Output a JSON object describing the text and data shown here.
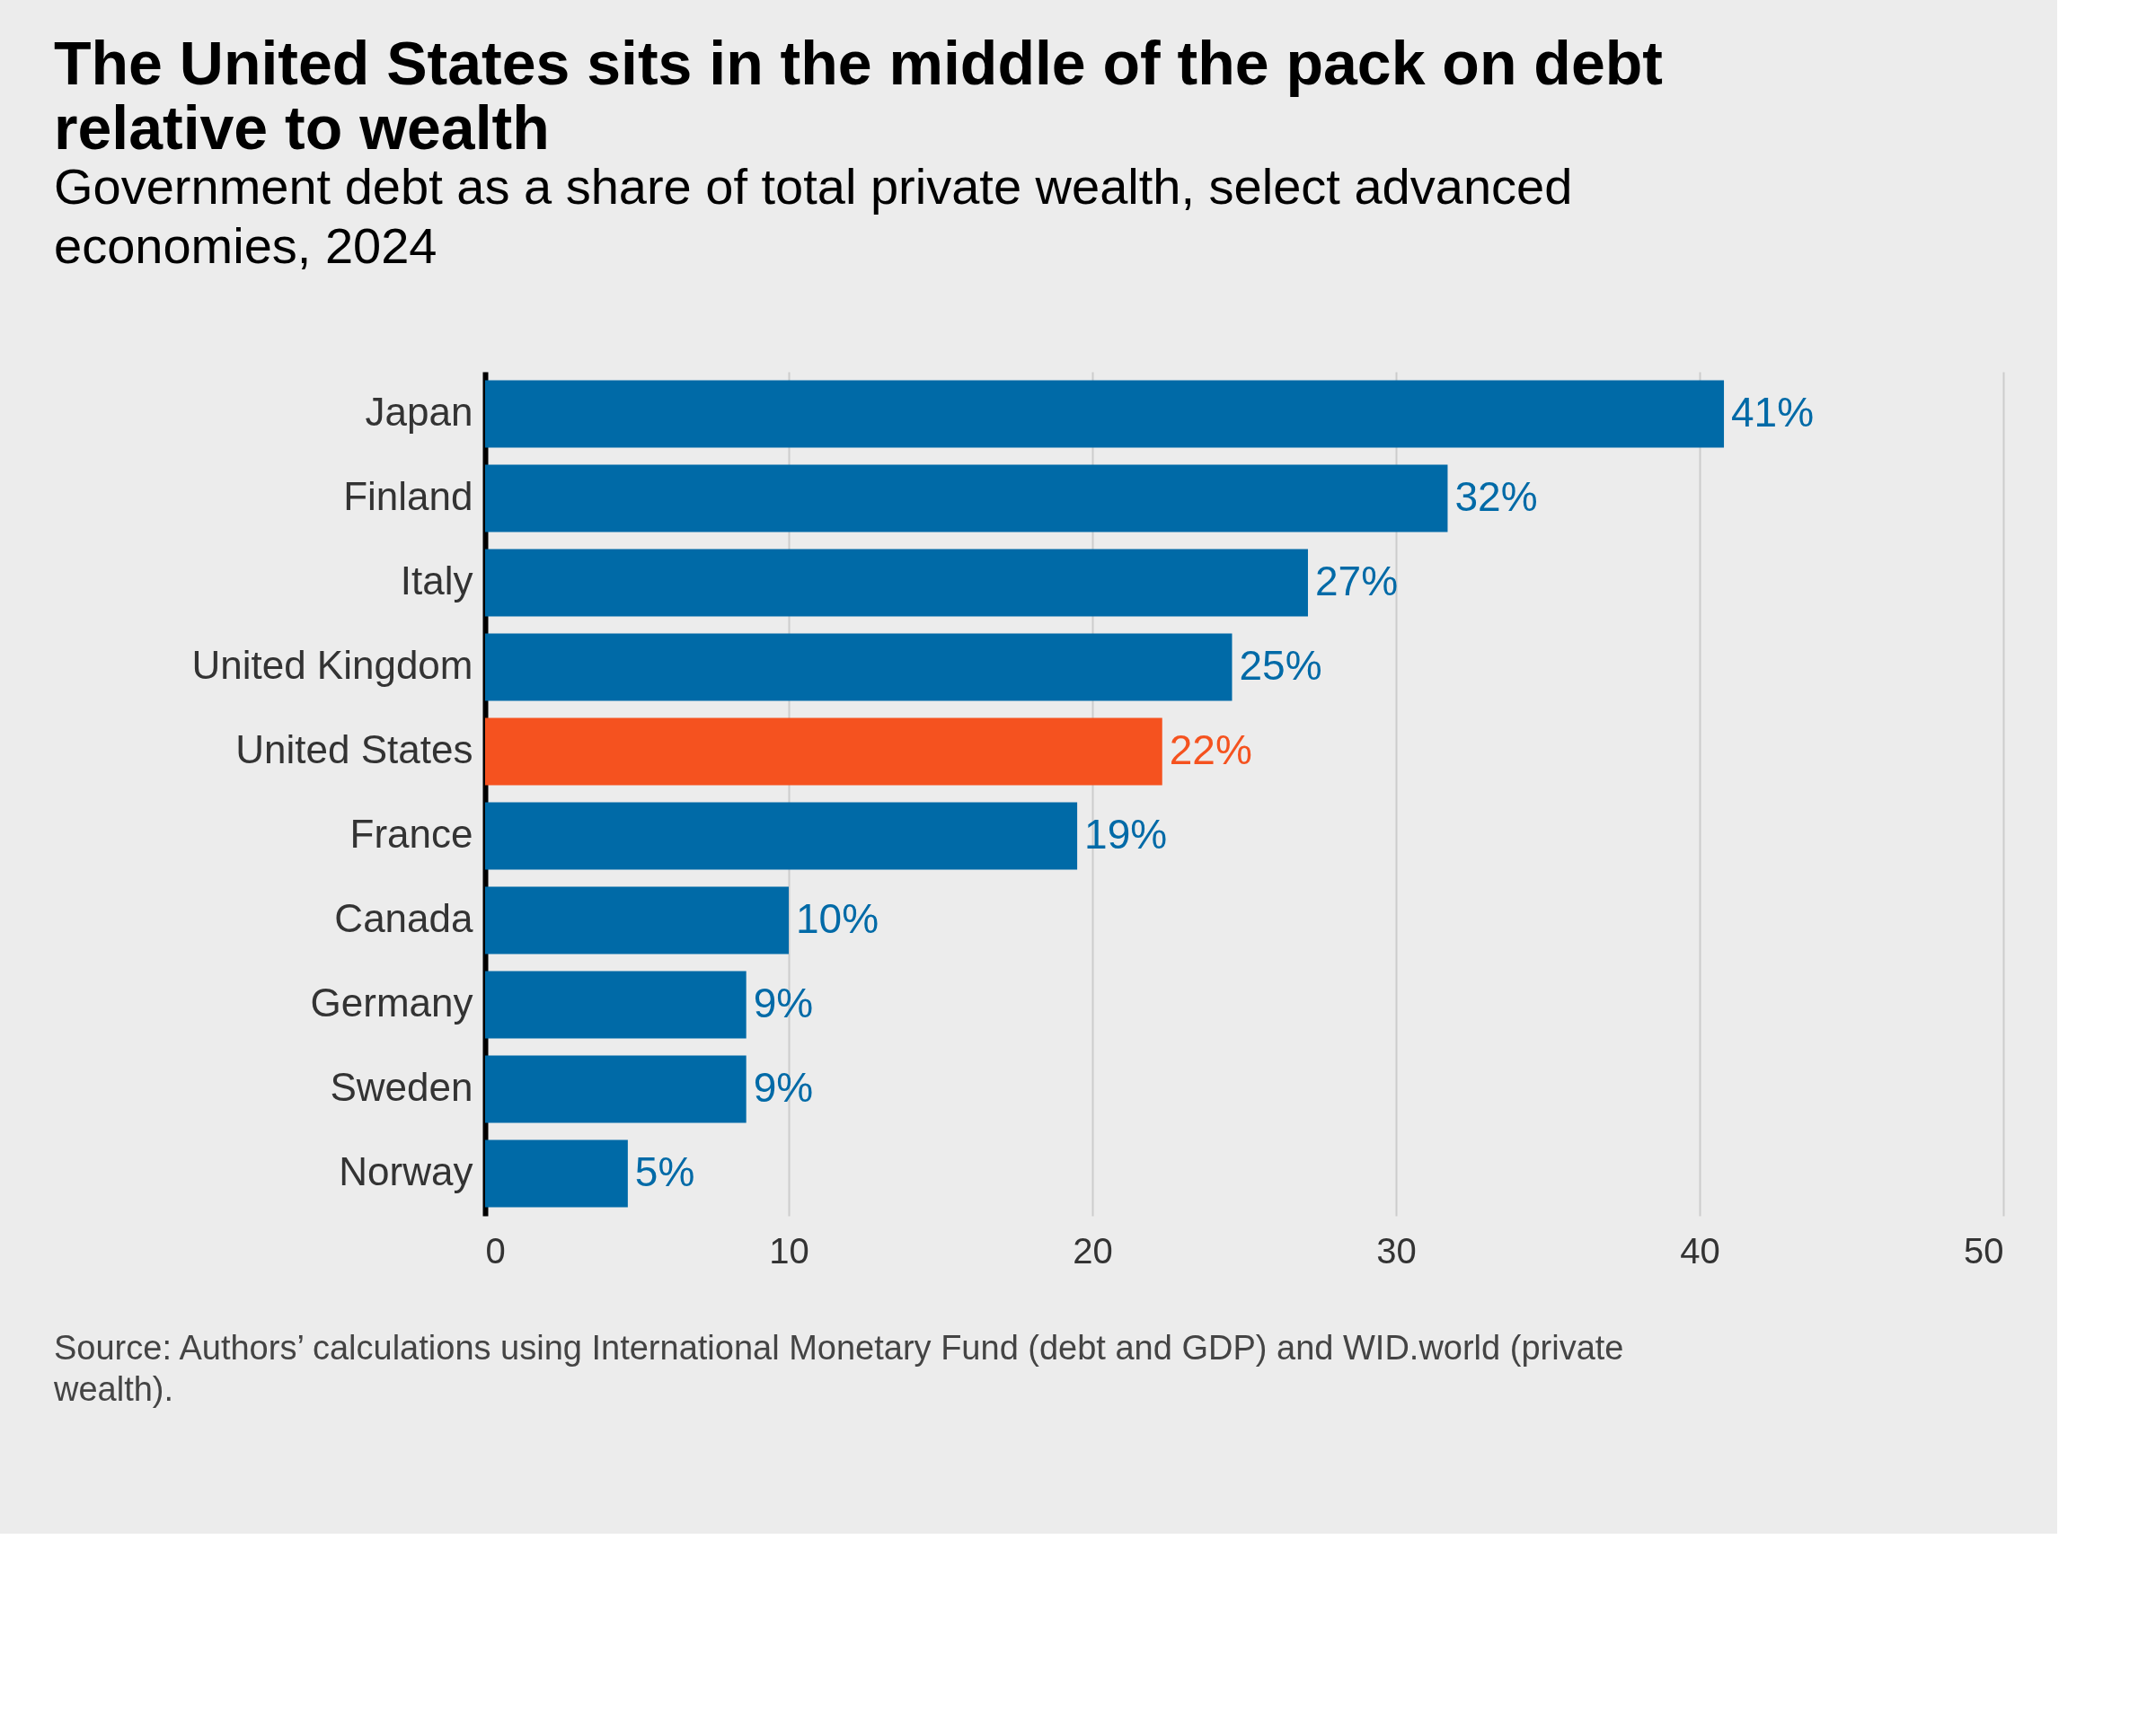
{
  "chart_data": {
    "type": "bar",
    "orientation": "horizontal",
    "title": "The United States sits in the middle of the pack on debt relative to wealth",
    "subtitle": "Government debt as a share of total private wealth, select advanced economies, 2024",
    "categories": [
      "Japan",
      "Finland",
      "Italy",
      "United Kingdom",
      "United States",
      "France",
      "Canada",
      "Germany",
      "Sweden",
      "Norway"
    ],
    "values": [
      40.8,
      31.7,
      27.1,
      24.6,
      22.3,
      19.5,
      10.0,
      8.6,
      8.6,
      4.7
    ],
    "value_labels": [
      "41%",
      "32%",
      "27%",
      "25%",
      "22%",
      "19%",
      "10%",
      "9%",
      "9%",
      "5%"
    ],
    "colors": [
      "#006aa7",
      "#006aa7",
      "#006aa7",
      "#006aa7",
      "#f5521f",
      "#006aa7",
      "#006aa7",
      "#006aa7",
      "#006aa7",
      "#006aa7"
    ],
    "xlim": [
      0,
      50
    ],
    "xticks": [
      0,
      10,
      20,
      30,
      40,
      50
    ],
    "grid": "x",
    "annotations": [
      "Source: Authors’ calculations using International Monetary Fund (debt and GDP) and WID.world (private wealth)."
    ]
  }
}
